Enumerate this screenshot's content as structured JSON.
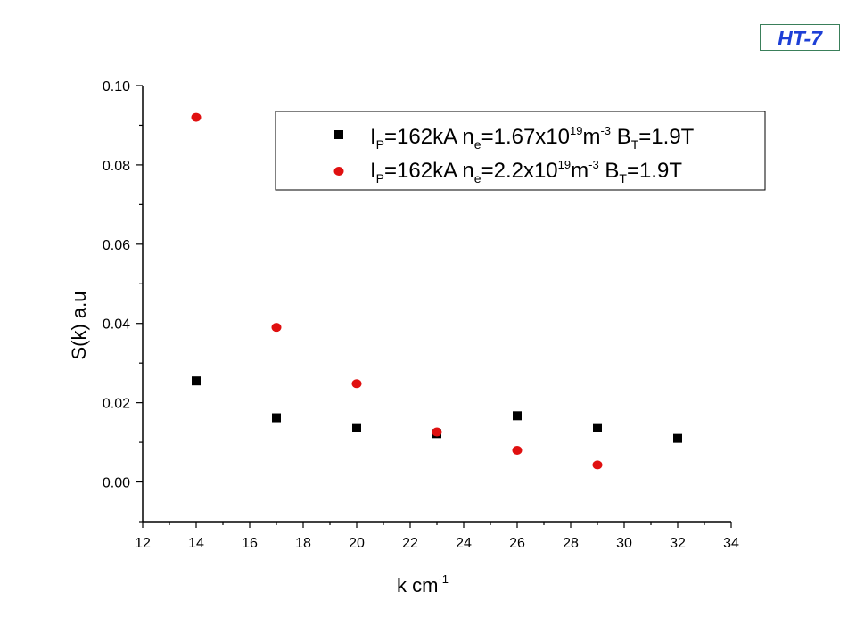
{
  "badge": {
    "text": "HT-7",
    "color": "#1d3fd6"
  },
  "chart_data": {
    "type": "scatter",
    "xlabel": "k   cm",
    "xlabel_sup": "-1",
    "ylabel": "S(k)  a.u",
    "xlim": [
      12,
      34
    ],
    "ylim": [
      -0.01,
      0.1
    ],
    "xticks": [
      12,
      14,
      16,
      18,
      20,
      22,
      24,
      26,
      28,
      30,
      32,
      34
    ],
    "yticks": [
      0.0,
      0.02,
      0.04,
      0.06,
      0.08,
      0.1
    ],
    "ytick_labels": [
      "0.00",
      "0.02",
      "0.04",
      "0.06",
      "0.08",
      "0.10"
    ],
    "legend_position": "top-right",
    "series": [
      {
        "marker": "square",
        "color": "#000000",
        "legend": {
          "I": "I",
          "I_sub": "P",
          "ip": "=162kA   n",
          "n_sub": "e",
          "ne": "=1.67x10",
          "pow": "19",
          "m": "m",
          "m_pow": "-3",
          "B": "  B",
          "B_sub": "T",
          "bt": "=1.9T"
        },
        "x": [
          14,
          17,
          20,
          23,
          26,
          29,
          32
        ],
        "y": [
          0.0255,
          0.0162,
          0.0137,
          0.0122,
          0.0167,
          0.0137,
          0.011
        ]
      },
      {
        "marker": "circle",
        "color": "#e01010",
        "legend": {
          "I": "I",
          "I_sub": "P",
          "ip": "=162kA   n",
          "n_sub": "e",
          "ne": "=2.2x10",
          "pow": "19",
          "m": "m",
          "m_pow": "-3",
          "B": "   B",
          "B_sub": "T",
          "bt": "=1.9T"
        },
        "x": [
          14,
          17,
          20,
          23,
          26,
          29
        ],
        "y": [
          0.092,
          0.039,
          0.0248,
          0.0126,
          0.008,
          0.0043
        ]
      }
    ]
  }
}
